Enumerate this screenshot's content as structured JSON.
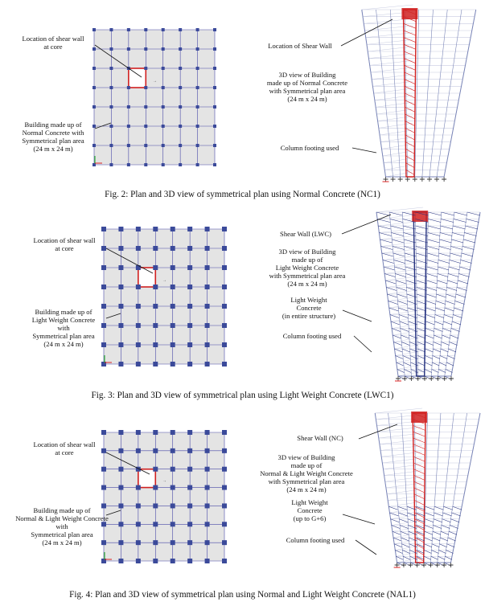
{
  "figures": [
    {
      "plan_labels": {
        "wall": [
          "Location of shear wall",
          "at core"
        ],
        "building": [
          "Building made up of",
          "Normal Concrete with",
          "Symmetrical plan area",
          "(24 m x 24 m)"
        ]
      },
      "view_labels": {
        "wall": [
          "Location of Shear Wall"
        ],
        "desc": [
          "3D view of Building",
          "made up of Normal Concrete",
          "with Symmetrical plan area",
          "(24 m x 24 m)"
        ],
        "footing": [
          "Column footing used"
        ]
      },
      "caption": "Fig. 2: Plan and 3D view of symmetrical plan using  Normal  Concrete (NC1)"
    },
    {
      "plan_labels": {
        "wall": [
          "Location of shear wall",
          "at core"
        ],
        "building": [
          "Building made up of",
          "Light Weight Concrete",
          "with",
          "Symmetrical plan area",
          "(24 m x 24 m)"
        ]
      },
      "view_labels": {
        "wall": [
          "Shear Wall (LWC)"
        ],
        "desc": [
          "3D view of Building",
          "made up of",
          "Light Weight Concrete",
          "with Symmetrical plan area",
          "(24 m x 24 m)"
        ],
        "lwc": [
          "Light Weight",
          "Concrete",
          "(in entire structure)"
        ],
        "footing": [
          "Column footing used"
        ]
      },
      "caption": "Fig. 3: Plan and 3D view of symmetrical plan using  Light Weight Concrete (LWC1)"
    },
    {
      "plan_labels": {
        "wall": [
          "Location of shear wall",
          "at core"
        ],
        "building": [
          "Building made up of",
          "Normal & Light Weight Concrete",
          "with",
          "Symmetrical plan area",
          "(24 m x 24 m)"
        ]
      },
      "view_labels": {
        "wall": [
          "Shear Wall (NC)"
        ],
        "desc": [
          "3D view of Building",
          "made up of",
          "Normal & Light Weight Concrete",
          "with Symmetrical plan area",
          "(24 m x 24 m)"
        ],
        "lwc": [
          "Light Weight",
          "Concrete",
          "(up to G+6)"
        ],
        "footing": [
          "Column footing used"
        ]
      },
      "caption": "Fig. 4: Plan and 3D view of symmetrical plan using  Normal  and Light Weight Concrete (NAL1)"
    }
  ],
  "colors": {
    "plan_fill": "#e4e4e4",
    "grid_line": "#4848a8",
    "column": "#3b4a9a",
    "shear_wall": "#d02020",
    "frame": "#7b86b8",
    "frame_light": "#c7cbe0",
    "lwc": "#24307e"
  },
  "icons": {
    "origin": "axis-origin-icon"
  }
}
